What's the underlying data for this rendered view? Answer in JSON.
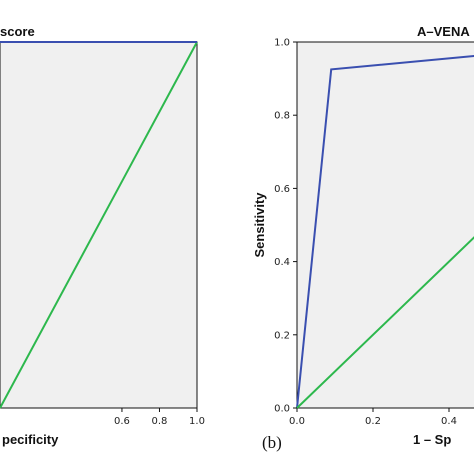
{
  "panel_labels": {
    "right": "(b)"
  },
  "chart_data": [
    {
      "type": "line",
      "title": "score",
      "xlabel": "pecificity",
      "ylabel": "",
      "xlim": [
        -0.05,
        1.0
      ],
      "ylim": [
        0.0,
        1.0
      ],
      "x_ticks": [
        0.6,
        0.8,
        1.0
      ],
      "x_tick_labels": [
        "0.6",
        "0.8",
        "1.0"
      ],
      "y_ticks": [],
      "y_tick_labels": [],
      "grid": false,
      "background": "#f0f0f0",
      "series": [
        {
          "x": [
            -0.05,
            1.0
          ],
          "y": [
            0.0,
            1.0
          ],
          "color": "#2db84d"
        },
        {
          "x": [
            -0.05,
            1.0
          ],
          "y": [
            1.0,
            1.0
          ],
          "color": "#3a4fb0"
        }
      ]
    },
    {
      "type": "line",
      "title": "A–VENA",
      "xlabel": "1 – Sp",
      "ylabel": "Sensitivity",
      "xlim": [
        0.0,
        0.5
      ],
      "ylim": [
        0.0,
        1.0
      ],
      "x_ticks": [
        0.0,
        0.2,
        0.4
      ],
      "x_tick_labels": [
        "0.0",
        "0.2",
        "0.4"
      ],
      "y_ticks": [
        0.0,
        0.2,
        0.4,
        0.6,
        0.8,
        1.0
      ],
      "y_tick_labels": [
        "0.0",
        "0.2",
        "0.4",
        "0.6",
        "0.8",
        "1.0"
      ],
      "grid": false,
      "background": "#f0f0f0",
      "series": [
        {
          "x": [
            0.0,
            0.09,
            0.5
          ],
          "y": [
            0.0,
            0.925,
            0.965
          ],
          "color": "#3a4fb0"
        },
        {
          "x": [
            0.0,
            0.5
          ],
          "y": [
            0.0,
            0.5
          ],
          "color": "#2db84d"
        }
      ]
    }
  ]
}
